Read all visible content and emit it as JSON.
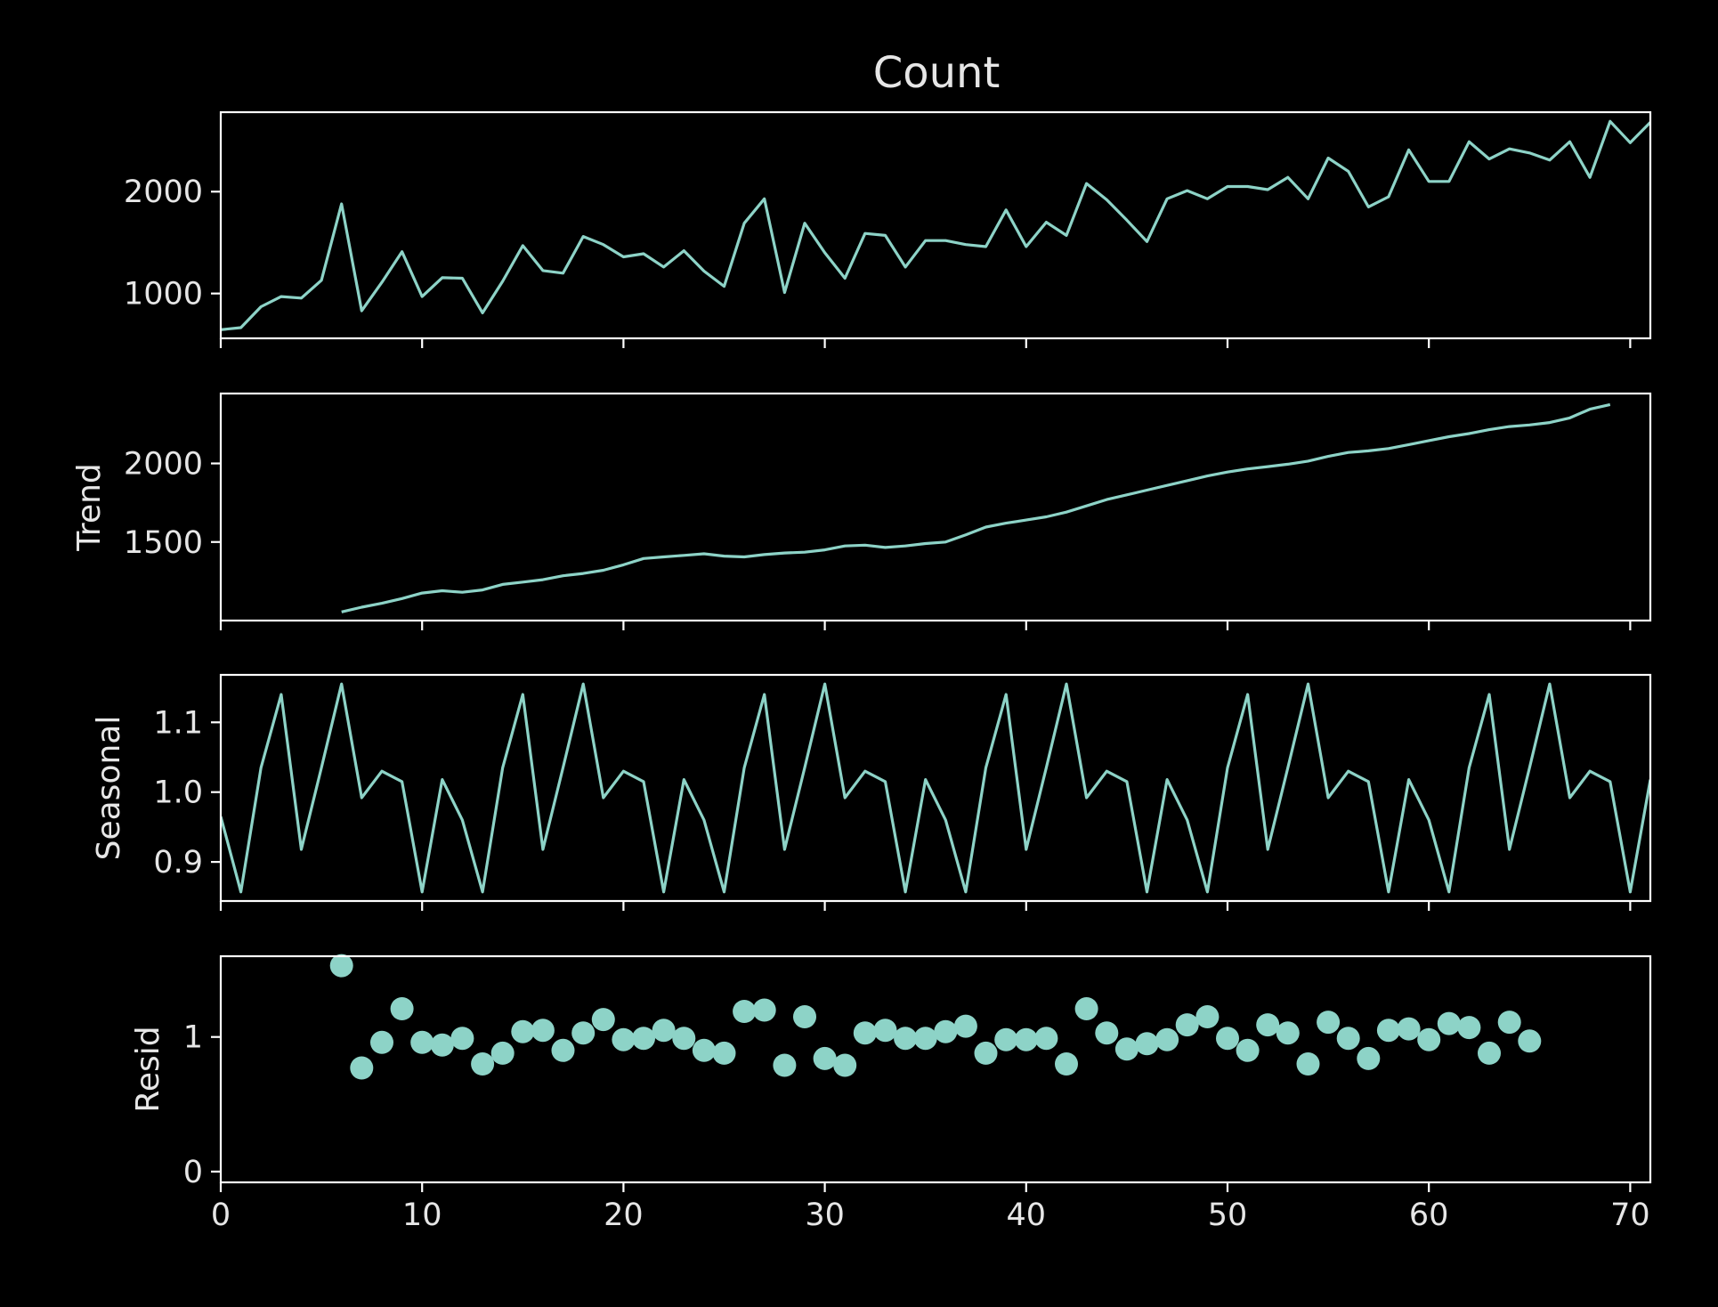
{
  "chart_data": {
    "type": "line",
    "title": "Count",
    "series_color": "#8dd3c7",
    "axis_color": "#ffffff",
    "background": "#000000",
    "x": {
      "xlim": [
        0,
        71
      ],
      "ticks": [
        0,
        10,
        20,
        30,
        40,
        50,
        60,
        70
      ]
    },
    "panels": [
      {
        "name": "observed",
        "ylabel": "",
        "kind": "line",
        "ylim": [
          560,
          2780
        ],
        "yticks": [
          1000,
          2000
        ],
        "x_start": 0,
        "values": [
          645,
          665,
          870,
          970,
          955,
          1130,
          1880,
          830,
          1110,
          1410,
          970,
          1155,
          1150,
          810,
          1120,
          1470,
          1225,
          1200,
          1560,
          1480,
          1360,
          1390,
          1260,
          1420,
          1220,
          1070,
          1690,
          1930,
          1010,
          1690,
          1400,
          1150,
          1590,
          1570,
          1260,
          1520,
          1520,
          1480,
          1460,
          1820,
          1460,
          1700,
          1570,
          2080,
          1920,
          1720,
          1510,
          1930,
          2010,
          1930,
          2050,
          2050,
          2020,
          2140,
          1930,
          2330,
          2200,
          1850,
          1950,
          2410,
          2100,
          2100,
          2490,
          2320,
          2420,
          2380,
          2310,
          2490,
          2140,
          2690,
          2480,
          2680
        ]
      },
      {
        "name": "trend",
        "ylabel": "Trend",
        "kind": "line",
        "ylim": [
          1000,
          2445
        ],
        "yticks": [
          1500,
          2000
        ],
        "x_start": 6,
        "values": [
          1055,
          1085,
          1110,
          1140,
          1175,
          1190,
          1180,
          1195,
          1230,
          1245,
          1260,
          1285,
          1300,
          1320,
          1355,
          1395,
          1405,
          1415,
          1425,
          1410,
          1405,
          1420,
          1430,
          1435,
          1450,
          1475,
          1480,
          1465,
          1475,
          1490,
          1500,
          1545,
          1595,
          1620,
          1640,
          1660,
          1690,
          1730,
          1770,
          1800,
          1830,
          1860,
          1890,
          1920,
          1945,
          1965,
          1980,
          1995,
          2015,
          2045,
          2070,
          2080,
          2095,
          2120,
          2145,
          2170,
          2190,
          2215,
          2235,
          2245,
          2260,
          2290,
          2345,
          2375
        ]
      },
      {
        "name": "seasonal",
        "ylabel": "Seasonal",
        "kind": "line",
        "ylim": [
          0.844,
          1.168
        ],
        "yticks": [
          0.9,
          1.0,
          1.1
        ],
        "x_start": 0,
        "values": [
          0.965,
          0.857,
          1.035,
          1.14,
          0.918,
          1.035,
          1.155,
          0.992,
          1.03,
          1.015,
          0.857,
          1.018,
          0.96,
          0.857,
          1.035,
          1.14,
          0.918,
          1.035,
          1.155,
          0.992,
          1.03,
          1.015,
          0.857,
          1.018,
          0.96,
          0.857,
          1.035,
          1.14,
          0.918,
          1.035,
          1.155,
          0.992,
          1.03,
          1.015,
          0.857,
          1.018,
          0.96,
          0.857,
          1.035,
          1.14,
          0.918,
          1.035,
          1.155,
          0.992,
          1.03,
          1.015,
          0.857,
          1.018,
          0.96,
          0.857,
          1.035,
          1.14,
          0.918,
          1.035,
          1.155,
          0.992,
          1.03,
          1.015,
          0.857,
          1.018,
          0.96,
          0.857,
          1.035,
          1.14,
          0.918,
          1.035,
          1.155,
          0.992,
          1.03,
          1.015,
          0.857,
          1.018
        ]
      },
      {
        "name": "resid",
        "ylabel": "Resid",
        "kind": "scatter",
        "ylim": [
          -0.08,
          1.6
        ],
        "yticks": [
          0,
          1
        ],
        "x_start": 6,
        "values": [
          1.53,
          0.77,
          0.96,
          1.21,
          0.96,
          0.94,
          0.99,
          0.8,
          0.88,
          1.04,
          1.05,
          0.9,
          1.03,
          1.13,
          0.98,
          0.99,
          1.05,
          0.99,
          0.9,
          0.88,
          1.19,
          1.2,
          0.79,
          1.15,
          0.84,
          0.79,
          1.03,
          1.05,
          0.99,
          0.99,
          1.04,
          1.08,
          0.88,
          0.98,
          0.98,
          0.99,
          0.8,
          1.21,
          1.03,
          0.91,
          0.95,
          0.98,
          1.09,
          1.15,
          0.99,
          0.9,
          1.09,
          1.03,
          0.8,
          1.11,
          0.99,
          0.84,
          1.05,
          1.06,
          0.98,
          1.1,
          1.07,
          0.88,
          1.11,
          0.97
        ]
      }
    ]
  }
}
